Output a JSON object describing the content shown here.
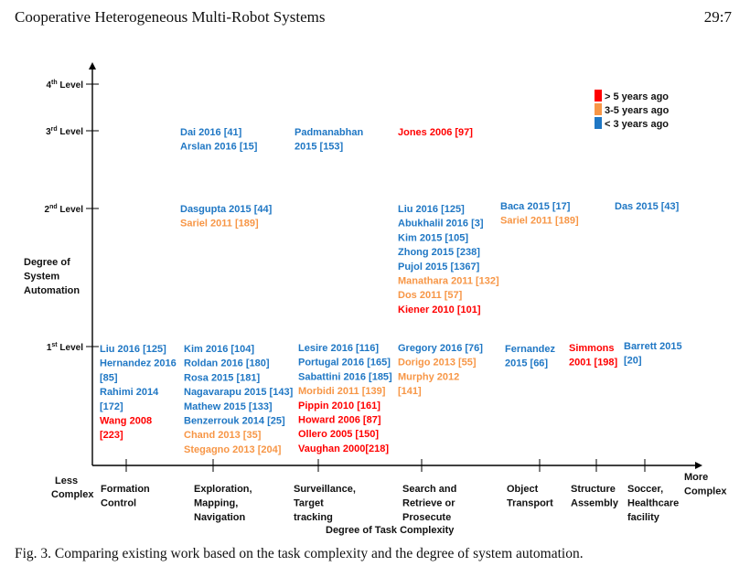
{
  "header": {
    "running_title": "Cooperative Heterogeneous Multi-Robot Systems",
    "page_number": "29:7"
  },
  "colors": {
    "old": "#ff0000",
    "mid": "#f79646",
    "recent": "#1f77c4",
    "axis": "#000000",
    "text": "#111111"
  },
  "legend": [
    {
      "label": "> 5 years ago",
      "color": "old"
    },
    {
      "label": "3-5 years ago",
      "color": "mid"
    },
    {
      "label": "< 3 years ago",
      "color": "recent"
    }
  ],
  "y_axis": {
    "title": [
      "Degree of",
      "System",
      "Automation"
    ],
    "levels": [
      {
        "base": "1",
        "sup": "st",
        "rest": " Level"
      },
      {
        "base": "2",
        "sup": "nd",
        "rest": " Level"
      },
      {
        "base": "3",
        "sup": "rd",
        "rest": " Level"
      },
      {
        "base": "4",
        "sup": "th",
        "rest": " Level"
      }
    ]
  },
  "x_axis": {
    "title": "Degree of Task Complexity",
    "low_label": [
      "Less",
      "Complex"
    ],
    "high_label": [
      "More",
      "Complex"
    ],
    "categories": [
      [
        "Formation",
        "Control"
      ],
      [
        "Exploration,",
        "Mapping,",
        "Navigation"
      ],
      [
        "Surveillance,",
        "Target",
        "tracking"
      ],
      [
        "Search and",
        "Retrieve or",
        "Prosecute"
      ],
      [
        "Object",
        "Transport"
      ],
      [
        "Structure",
        "Assembly"
      ],
      [
        "Soccer,",
        "Healthcare",
        "facility"
      ]
    ]
  },
  "entries": {
    "level3_col2": [
      {
        "text": "Dai 2016 [41]",
        "color": "recent"
      },
      {
        "text": "Arslan 2016 [15]",
        "color": "recent"
      }
    ],
    "level3_col3": [
      {
        "text": "Padmanabhan",
        "color": "recent"
      },
      {
        "text": "2015 [153]",
        "color": "recent"
      }
    ],
    "level3_col4": [
      {
        "text": "Jones 2006 [97]",
        "color": "old"
      }
    ],
    "level2_col2": [
      {
        "text": "Dasgupta 2015 [44]",
        "color": "recent"
      },
      {
        "text": "Sariel 2011 [189]",
        "color": "mid"
      }
    ],
    "level2_col4": [
      {
        "text": "Liu 2016 [125]",
        "color": "recent"
      },
      {
        "text": "Abukhalil 2016 [3]",
        "color": "recent"
      },
      {
        "text": "Kim 2015 [105]",
        "color": "recent"
      },
      {
        "text": "Zhong 2015 [238]",
        "color": "recent"
      },
      {
        "text": "Pujol 2015 [1367]",
        "color": "recent"
      },
      {
        "text": "Manathara 2011 [132]",
        "color": "mid"
      },
      {
        "text": "Dos 2011 [57]",
        "color": "mid"
      },
      {
        "text": "Kiener 2010 [101]",
        "color": "old"
      }
    ],
    "level2_col5": [
      {
        "text": "Baca 2015 [17]",
        "color": "recent"
      },
      {
        "text": "Sariel 2011 [189]",
        "color": "mid"
      }
    ],
    "level2_col7": [
      {
        "text": "Das 2015 [43]",
        "color": "recent"
      }
    ],
    "level1_col1": [
      {
        "text": "Liu 2016 [125]",
        "color": "recent"
      },
      {
        "text": "Hernandez 2016",
        "color": "recent"
      },
      {
        "text": "[85]",
        "color": "recent"
      },
      {
        "text": "Rahimi 2014",
        "color": "recent"
      },
      {
        "text": "[172]",
        "color": "recent"
      },
      {
        "text": "Wang 2008",
        "color": "old"
      },
      {
        "text": "[223]",
        "color": "old"
      }
    ],
    "level1_col2": [
      {
        "text": "Kim 2016 [104]",
        "color": "recent"
      },
      {
        "text": "Roldan 2016 [180]",
        "color": "recent"
      },
      {
        "text": "Rosa 2015 [181]",
        "color": "recent"
      },
      {
        "text": "Nagavarapu 2015 [143]",
        "color": "recent"
      },
      {
        "text": "Mathew 2015 [133]",
        "color": "recent"
      },
      {
        "text": "Benzerrouk 2014 [25]",
        "color": "recent"
      },
      {
        "text": "Chand 2013 [35]",
        "color": "mid"
      },
      {
        "text": "Stegagno 2013 [204]",
        "color": "mid"
      }
    ],
    "level1_col3": [
      {
        "text": "Lesire 2016 [116]",
        "color": "recent"
      },
      {
        "text": "Portugal 2016 [165]",
        "color": "recent"
      },
      {
        "text": "Sabattini 2016 [185]",
        "color": "recent"
      },
      {
        "text": "Morbidi 2011 [139]",
        "color": "mid"
      },
      {
        "text": "Pippin 2010 [161]",
        "color": "old"
      },
      {
        "text": "Howard 2006 [87]",
        "color": "old"
      },
      {
        "text": "Ollero 2005 [150]",
        "color": "old"
      },
      {
        "text": "Vaughan 2000[218]",
        "color": "old"
      }
    ],
    "level1_col4": [
      {
        "text": "Gregory 2016 [76]",
        "color": "recent"
      },
      {
        "text": "Dorigo 2013 [55]",
        "color": "mid"
      },
      {
        "text": "Murphy 2012",
        "color": "mid"
      },
      {
        "text": "[141]",
        "color": "mid"
      }
    ],
    "level1_col5": [
      {
        "text": "Fernandez",
        "color": "recent"
      },
      {
        "text": "2015 [66]",
        "color": "recent"
      }
    ],
    "level1_col6": [
      {
        "text": "Simmons",
        "color": "old"
      },
      {
        "text": "2001 [198]",
        "color": "old"
      }
    ],
    "level1_col7": [
      {
        "text": "Barrett 2015",
        "color": "recent"
      },
      {
        "text": "[20]",
        "color": "recent"
      }
    ]
  },
  "caption": "Fig. 3.  Comparing existing work based on the task complexity and the degree of system automation."
}
